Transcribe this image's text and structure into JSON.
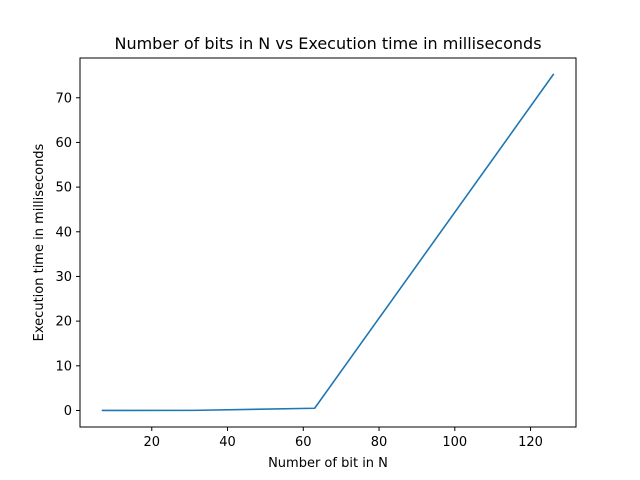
{
  "chart_data": {
    "type": "line",
    "title": "Number of bits in N vs Execution time in milliseconds",
    "xlabel": "Number of bit in N",
    "ylabel": "Execution time in milliseconds",
    "xlim": [
      1.05,
      132.0
    ],
    "ylim": [
      -3.7,
      78.9
    ],
    "xticks": [
      20,
      40,
      60,
      80,
      100,
      120
    ],
    "yticks": [
      0,
      10,
      20,
      30,
      40,
      50,
      60,
      70
    ],
    "grid": false,
    "series": [
      {
        "x": [
          7,
          31,
          63,
          126
        ],
        "y": [
          0.0,
          0.02,
          0.5,
          75.2
        ]
      }
    ],
    "colors": {
      "line": "#1f77b4",
      "axes": "#000000",
      "background": "#ffffff"
    }
  }
}
